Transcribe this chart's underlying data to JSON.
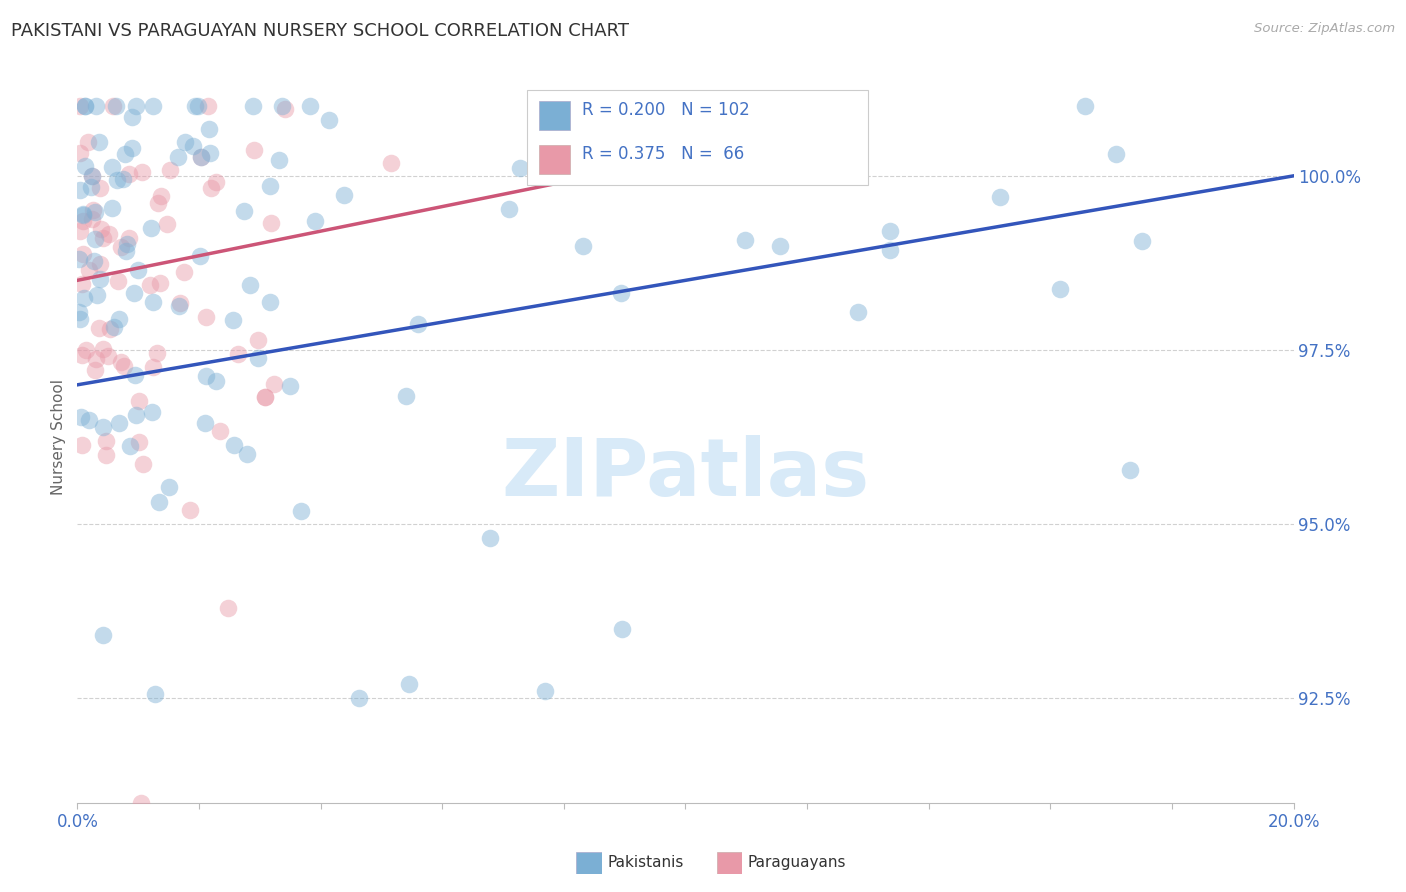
{
  "title": "PAKISTANI VS PARAGUAYAN NURSERY SCHOOL CORRELATION CHART",
  "source": "Source: ZipAtlas.com",
  "ylabel": "Nursery School",
  "legend_pak": {
    "label": "Pakistanis",
    "R": 0.2,
    "N": 102
  },
  "legend_par": {
    "label": "Paraguayans",
    "R": 0.375,
    "N": 66
  },
  "ytick_labels": [
    "100.0%",
    "97.5%",
    "95.0%",
    "92.5%"
  ],
  "ytick_values": [
    100.0,
    97.5,
    95.0,
    92.5
  ],
  "xlim": [
    0.0,
    20.0
  ],
  "ylim": [
    91.0,
    101.5
  ],
  "blue_fill": "#7bafd4",
  "pink_fill": "#e899a8",
  "blue_line": "#3355bb",
  "pink_line": "#cc5577",
  "axis_tick_color": "#4472c4",
  "grid_color": "#cccccc",
  "title_color": "#333333",
  "source_color": "#aaaaaa",
  "watermark_color": "#d8eaf8",
  "ylabel_color": "#666666",
  "bottom_legend_color": "#333333",
  "legend_box_color": "#4472c4",
  "marker_size": 160,
  "marker_alpha": 0.45,
  "blue_trend_x0": 0.0,
  "blue_trend_x1": 20.0,
  "blue_trend_y0": 97.0,
  "blue_trend_y1": 100.0,
  "pink_trend_x0": 0.0,
  "pink_trend_x1": 8.5,
  "pink_trend_y0": 98.5,
  "pink_trend_y1": 100.0
}
